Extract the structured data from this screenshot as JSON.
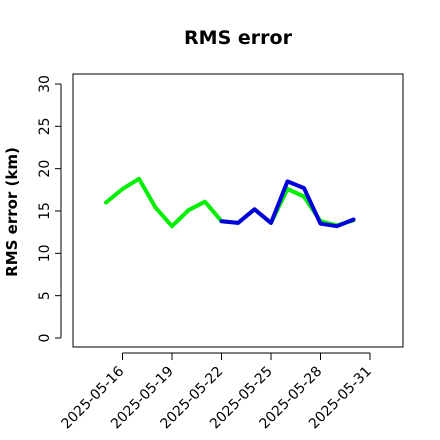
{
  "chart_data": {
    "type": "line",
    "title": "RMS error",
    "xlabel": "",
    "ylabel": "RMS error (km)",
    "ylim": [
      0,
      30
    ],
    "xlim": [
      "2025-05-13",
      "2025-06-02"
    ],
    "yticks": [
      0,
      5,
      10,
      15,
      20,
      25,
      30
    ],
    "xticks": [
      {
        "date": "2025-05-16",
        "label": "2025-05-16",
        "color": "#000000"
      },
      {
        "date": "2025-05-19",
        "label": "2025-05-19",
        "color": "#000000"
      },
      {
        "date": "2025-05-22",
        "label": "2025-05-22",
        "color": "#228b22"
      },
      {
        "date": "2025-05-25",
        "label": "2025-05-25",
        "color": "#000000"
      },
      {
        "date": "2025-05-28",
        "label": "2025-05-28",
        "color": "#000000"
      },
      {
        "date": "2025-05-31",
        "label": "2025-05-31",
        "color": "#000000"
      }
    ],
    "series": [
      {
        "color": "#00ee00",
        "x": [
          "2025-05-15",
          "2025-05-16",
          "2025-05-17",
          "2025-05-18",
          "2025-05-19",
          "2025-05-20",
          "2025-05-21",
          "2025-05-22",
          "2025-05-23",
          "2025-05-24",
          "2025-05-25",
          "2025-05-26",
          "2025-05-27",
          "2025-05-28",
          "2025-05-29",
          "2025-05-30"
        ],
        "values": [
          16.0,
          17.6,
          18.8,
          15.4,
          13.2,
          15.1,
          16.1,
          13.8,
          13.6,
          15.2,
          13.6,
          17.6,
          16.7,
          13.8,
          13.3,
          13.9
        ]
      },
      {
        "color": "#0000dd",
        "x": [
          "2025-05-22",
          "2025-05-23",
          "2025-05-24",
          "2025-05-25",
          "2025-05-26",
          "2025-05-27",
          "2025-05-28",
          "2025-05-29",
          "2025-05-30"
        ],
        "values": [
          13.8,
          13.6,
          15.2,
          13.6,
          18.5,
          17.7,
          13.5,
          13.2,
          14.0
        ]
      }
    ],
    "grid": false,
    "legend": "none"
  }
}
